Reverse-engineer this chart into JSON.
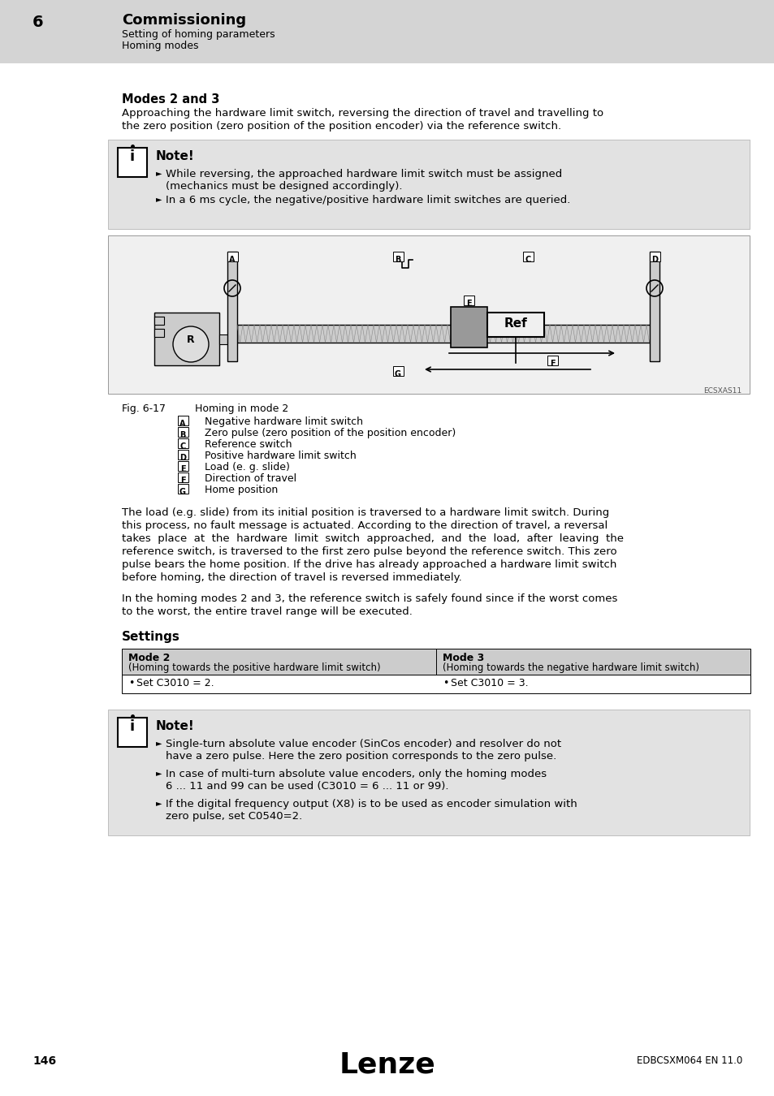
{
  "page_bg": "#ffffff",
  "header_bg": "#d4d4d4",
  "header_number": "6",
  "header_title": "Commissioning",
  "header_sub1": "Setting of homing parameters",
  "header_sub2": "Homing modes",
  "section_title": "Modes 2 and 3",
  "section_intro_1": "Approaching the hardware limit switch, reversing the direction of travel and travelling to",
  "section_intro_2": "the zero position (zero position of the position encoder) via the reference switch.",
  "note1_title": "Note!",
  "note1_bullet1_line1": "While reversing, the approached hardware limit switch must be assigned",
  "note1_bullet1_line2": "(mechanics must be designed accordingly).",
  "note1_bullet2": "In a 6 ms cycle, the negative/positive hardware limit switches are queried.",
  "fig_label_A": "A",
  "fig_label_B": "B",
  "fig_label_C": "C",
  "fig_label_D": "D",
  "fig_label_E": "E",
  "fig_label_F": "F",
  "fig_label_G": "G",
  "fig_caption": "Fig. 6-17",
  "fig_caption2": "Homing in mode 2",
  "fig_legend": [
    [
      "A",
      "Negative hardware limit switch"
    ],
    [
      "B",
      "Zero pulse (zero position of the position encoder)"
    ],
    [
      "C",
      "Reference switch"
    ],
    [
      "D",
      "Positive hardware limit switch"
    ],
    [
      "E",
      "Load (e. g. slide)"
    ],
    [
      "F",
      "Direction of travel"
    ],
    [
      "G",
      "Home position"
    ]
  ],
  "body1_lines": [
    "The load (e.g. slide) from its initial position is traversed to a hardware limit switch. During",
    "this process, no fault message is actuated. According to the direction of travel, a reversal",
    "takes  place  at  the  hardware  limit  switch  approached,  and  the  load,  after  leaving  the",
    "reference switch, is traversed to the first zero pulse beyond the reference switch. This zero",
    "pulse bears the home position. If the drive has already approached a hardware limit switch",
    "before homing, the direction of travel is reversed immediately."
  ],
  "body2_lines": [
    "In the homing modes 2 and 3, the reference switch is safely found since if the worst comes",
    "to the worst, the entire travel range will be executed."
  ],
  "settings_title": "Settings",
  "table_col1_header": "Mode 2",
  "table_col1_sub": "(Homing towards the positive hardware limit switch)",
  "table_col2_header": "Mode 3",
  "table_col2_sub": "(Homing towards the negative hardware limit switch)",
  "table_col1_bullet": "Set C3010 = 2.",
  "table_col2_bullet": "Set C3010 = 3.",
  "note2_title": "Note!",
  "note2_bullet1_line1": "Single-turn absolute value encoder (SinCos encoder) and resolver do not",
  "note2_bullet1_line2": "have a zero pulse. Here the zero position corresponds to the zero pulse.",
  "note2_bullet2_line1": "In case of multi-turn absolute value encoders, only the homing modes",
  "note2_bullet2_line2": "6 ... 11 and 99 can be used (C3010 = 6 ... 11 or 99).",
  "note2_bullet3_line1": "If the digital frequency output (X8) is to be used as encoder simulation with",
  "note2_bullet3_line2": "zero pulse, set C0540=2.",
  "footer_page": "146",
  "footer_brand": "Lenze",
  "footer_doc": "EDBCSXM064 EN 11.0",
  "watermark": "ECSXAS11",
  "note_bg": "#e2e2e2",
  "fig_bg": "#f0f0f0",
  "table_hdr_bg": "#cccccc",
  "table_row_bg": "#ffffff"
}
